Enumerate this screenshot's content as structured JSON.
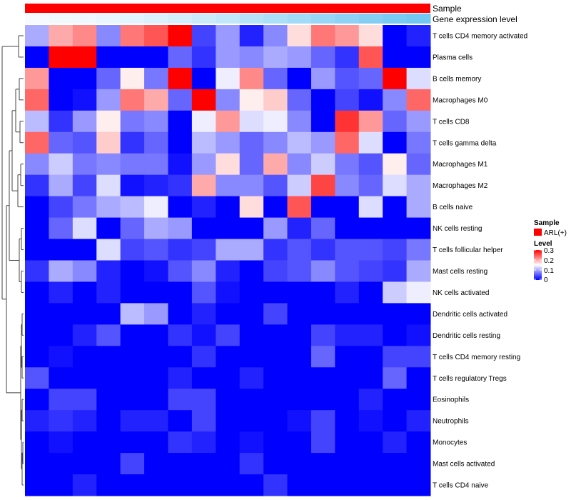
{
  "chart_data": {
    "type": "heatmap",
    "annotation_rows": [
      "Sample",
      "Gene expression level"
    ],
    "sample_annotation_color": "#FF0000",
    "gene_expression_colors": [
      "#f7fbff",
      "#f2f9fd",
      "#eef8fe",
      "#e9f6fd",
      "#e2f4fd",
      "#dbf1fc",
      "#d4eefc",
      "#cbebfb",
      "#c1e7fa",
      "#b7e3f9",
      "#acdff8",
      "#a2dbf7",
      "#97d6f6",
      "#8dd2f5",
      "#84cef4",
      "#7acbf3",
      "#72c8f2"
    ],
    "rows": [
      "T cells CD4 memory activated",
      "Plasma cells",
      "B cells memory",
      "Macrophages M0",
      "T cells CD8",
      "T cells gamma delta",
      "Macrophages M1",
      "Macrophages M2",
      "B cells naive",
      "NK cells resting",
      "T cells follicular helper",
      "Mast cells resting",
      "NK cells activated",
      "Dendritic cells activated",
      "Dendritic cells resting",
      "T cells CD4 memory resting",
      "T cells regulatory  Tregs",
      "Eosinophils",
      "Neutrophils",
      "Monocytes",
      "Mast cells activated",
      "T cells CD4 naive"
    ],
    "values": [
      [
        0.1,
        0.2,
        0.22,
        0.08,
        0.23,
        0.25,
        0.3,
        0.04,
        0.09,
        0.02,
        0.08,
        0.17,
        0.23,
        0.21,
        0.17,
        0.0,
        0.02
      ],
      [
        0.0,
        0.3,
        0.3,
        0.0,
        0.0,
        0.0,
        0.06,
        0.03,
        0.09,
        0.08,
        0.1,
        0.09,
        0.06,
        0.03,
        0.25,
        0.0,
        0.0
      ],
      [
        0.21,
        0.0,
        0.0,
        0.06,
        0.16,
        0.07,
        0.3,
        0.0,
        0.14,
        0.22,
        0.06,
        0.0,
        0.09,
        0.05,
        0.06,
        0.3,
        0.13
      ],
      [
        0.24,
        0.0,
        0.01,
        0.09,
        0.23,
        0.2,
        0.06,
        0.3,
        0.08,
        0.16,
        0.18,
        0.06,
        0.0,
        0.04,
        0.01,
        0.08,
        0.24
      ],
      [
        0.11,
        0.03,
        0.09,
        0.16,
        0.07,
        0.08,
        0.0,
        0.14,
        0.21,
        0.13,
        0.14,
        0.08,
        0.0,
        0.27,
        0.21,
        0.06,
        0.09
      ],
      [
        0.24,
        0.06,
        0.05,
        0.18,
        0.03,
        0.06,
        0.0,
        0.11,
        0.09,
        0.06,
        0.08,
        0.11,
        0.09,
        0.24,
        0.13,
        0.0,
        0.07
      ],
      [
        0.08,
        0.12,
        0.07,
        0.08,
        0.07,
        0.07,
        0.01,
        0.09,
        0.17,
        0.06,
        0.2,
        0.08,
        0.12,
        0.07,
        0.05,
        0.16,
        0.06
      ],
      [
        0.03,
        0.1,
        0.04,
        0.13,
        0.01,
        0.02,
        0.03,
        0.2,
        0.08,
        0.08,
        0.05,
        0.12,
        0.26,
        0.08,
        0.06,
        0.13,
        0.1
      ],
      [
        0.0,
        0.04,
        0.07,
        0.1,
        0.11,
        0.14,
        0.0,
        0.02,
        0.0,
        0.17,
        0.0,
        0.25,
        0.0,
        0.0,
        0.13,
        0.0,
        0.1
      ],
      [
        0.0,
        0.06,
        0.13,
        0.0,
        0.06,
        0.1,
        0.09,
        0.0,
        0.0,
        0.0,
        0.09,
        0.02,
        0.06,
        0.0,
        0.0,
        0.0,
        0.0
      ],
      [
        0.0,
        0.0,
        0.0,
        0.13,
        0.04,
        0.05,
        0.03,
        0.04,
        0.1,
        0.1,
        0.03,
        0.05,
        0.03,
        0.05,
        0.05,
        0.04,
        0.07
      ],
      [
        0.03,
        0.1,
        0.08,
        0.02,
        0.0,
        0.01,
        0.05,
        0.08,
        0.02,
        0.0,
        0.04,
        0.05,
        0.08,
        0.05,
        0.04,
        0.03,
        0.1
      ],
      [
        0.0,
        0.02,
        0.0,
        0.02,
        0.0,
        0.0,
        0.0,
        0.05,
        0.01,
        0.0,
        0.0,
        0.0,
        0.0,
        0.02,
        0.0,
        0.12,
        0.14
      ],
      [
        0.0,
        0.0,
        0.0,
        0.0,
        0.11,
        0.09,
        0.0,
        0.02,
        0.0,
        0.0,
        0.04,
        0.0,
        0.0,
        0.0,
        0.0,
        0.0,
        0.0
      ],
      [
        0.0,
        0.0,
        0.02,
        0.05,
        0.0,
        0.0,
        0.03,
        0.01,
        0.04,
        0.0,
        0.0,
        0.0,
        0.04,
        0.02,
        0.02,
        0.0,
        0.01
      ],
      [
        0.0,
        0.01,
        0.0,
        0.0,
        0.0,
        0.0,
        0.0,
        0.03,
        0.0,
        0.0,
        0.0,
        0.0,
        0.06,
        0.0,
        0.0,
        0.04,
        0.04
      ],
      [
        0.05,
        0.0,
        0.0,
        0.0,
        0.0,
        0.0,
        0.02,
        0.0,
        0.0,
        0.02,
        0.0,
        0.0,
        0.0,
        0.0,
        0.0,
        0.06,
        0.0
      ],
      [
        0.0,
        0.04,
        0.04,
        0.0,
        0.0,
        0.0,
        0.04,
        0.04,
        0.0,
        0.0,
        0.0,
        0.0,
        0.0,
        0.0,
        0.02,
        0.0,
        0.0
      ],
      [
        0.02,
        0.03,
        0.02,
        0.0,
        0.02,
        0.02,
        0.0,
        0.04,
        0.0,
        0.0,
        0.0,
        0.01,
        0.04,
        0.0,
        0.01,
        0.0,
        0.02
      ],
      [
        0.0,
        0.01,
        0.0,
        0.0,
        0.0,
        0.0,
        0.03,
        0.02,
        0.0,
        0.01,
        0.0,
        0.0,
        0.04,
        0.0,
        0.0,
        0.02,
        0.0
      ],
      [
        0.0,
        0.0,
        0.0,
        0.0,
        0.04,
        0.0,
        0.0,
        0.0,
        0.0,
        0.03,
        0.0,
        0.0,
        0.0,
        0.0,
        0.0,
        0.0,
        0.0
      ],
      [
        0.0,
        0.0,
        0.02,
        0.0,
        0.0,
        0.0,
        0.0,
        0.0,
        0.0,
        0.0,
        0.03,
        0.0,
        0.0,
        0.0,
        0.0,
        0.0,
        0.0
      ]
    ],
    "color_scale": {
      "low": "#0000FF",
      "mid": "#FFFFFF",
      "high": "#FF0000",
      "min": 0,
      "mid_value": 0.15,
      "max": 0.3
    },
    "legend": {
      "sample_title": "Sample",
      "sample_entry": "ARL(+)",
      "level_title": "Level",
      "level_ticks": [
        "0.3",
        "0.2",
        "0.1",
        "0"
      ],
      "placement": "right"
    },
    "dendrogram": "rows"
  }
}
